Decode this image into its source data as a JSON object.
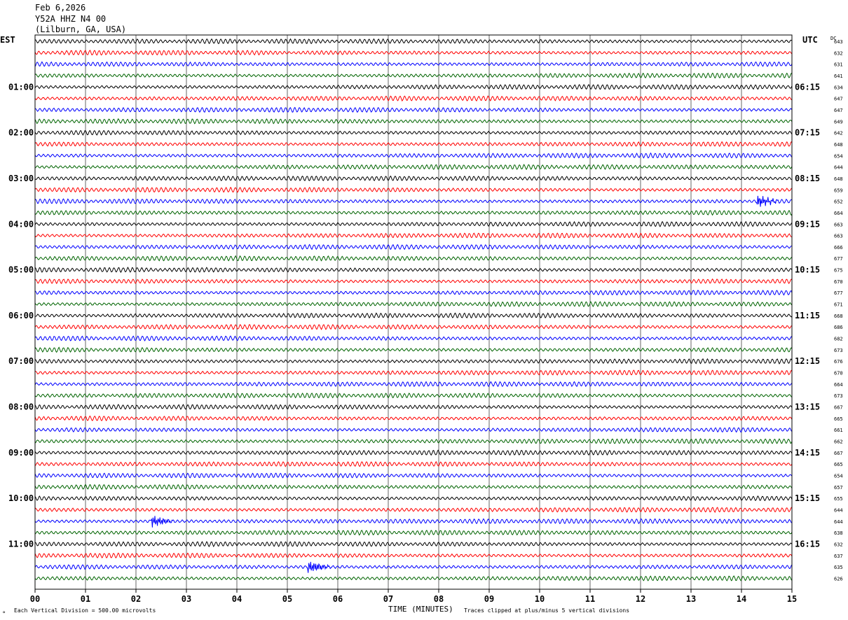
{
  "header": {
    "date": "Feb 6,2026",
    "station": "Y52A HHZ N4 00",
    "location": "(Lilburn, GA, USA)"
  },
  "labels": {
    "left_timezone": "EST",
    "right_timezone": "UTC",
    "dc": "DC",
    "xlabel": "TIME (MINUTES)",
    "footer_left": "Each Vertical Division =  500.00 microvolts",
    "footer_right": "Traces clipped at plus/minus 5 vertical divisions",
    "footer_mark": "°"
  },
  "chart_data": {
    "type": "line",
    "title": "Y52A HHZ N4 00",
    "xlabel": "TIME (MINUTES)",
    "xlim": [
      0,
      15
    ],
    "x_ticks": [
      "00",
      "01",
      "02",
      "03",
      "04",
      "05",
      "06",
      "07",
      "08",
      "09",
      "10",
      "11",
      "12",
      "13",
      "14",
      "15"
    ],
    "trace_colors": [
      "#000000",
      "#ff0000",
      "#0000ff",
      "#006400"
    ],
    "est_hour_labels": [
      "01:00",
      "02:00",
      "03:00",
      "04:00",
      "05:00",
      "06:00",
      "07:00",
      "08:00",
      "09:00",
      "10:00",
      "11:00"
    ],
    "utc_hour_labels": [
      "06:15",
      "07:15",
      "08:15",
      "09:15",
      "10:15",
      "11:15",
      "12:15",
      "13:15",
      "14:15",
      "15:15",
      "16:15"
    ],
    "dc_offsets": [
      643,
      632,
      631,
      641,
      634,
      647,
      647,
      649,
      642,
      648,
      654,
      644,
      648,
      659,
      652,
      664,
      663,
      663,
      666,
      677,
      675,
      670,
      677,
      671,
      668,
      686,
      682,
      673,
      676,
      670,
      664,
      673,
      667,
      665,
      661,
      662,
      667,
      665,
      654,
      657,
      655,
      644,
      644,
      638,
      632,
      637,
      635,
      626
    ],
    "events": [
      {
        "trace_index": 42,
        "minute": 2.3,
        "label": ""
      },
      {
        "trace_index": 46,
        "minute": 5.4,
        "label": ""
      },
      {
        "trace_index": 14,
        "minute": 14.3,
        "label": ""
      }
    ],
    "amplitude_units": "microvolts",
    "vertical_division_uv": 500.0,
    "clip_divisions": 5,
    "grid": true
  }
}
